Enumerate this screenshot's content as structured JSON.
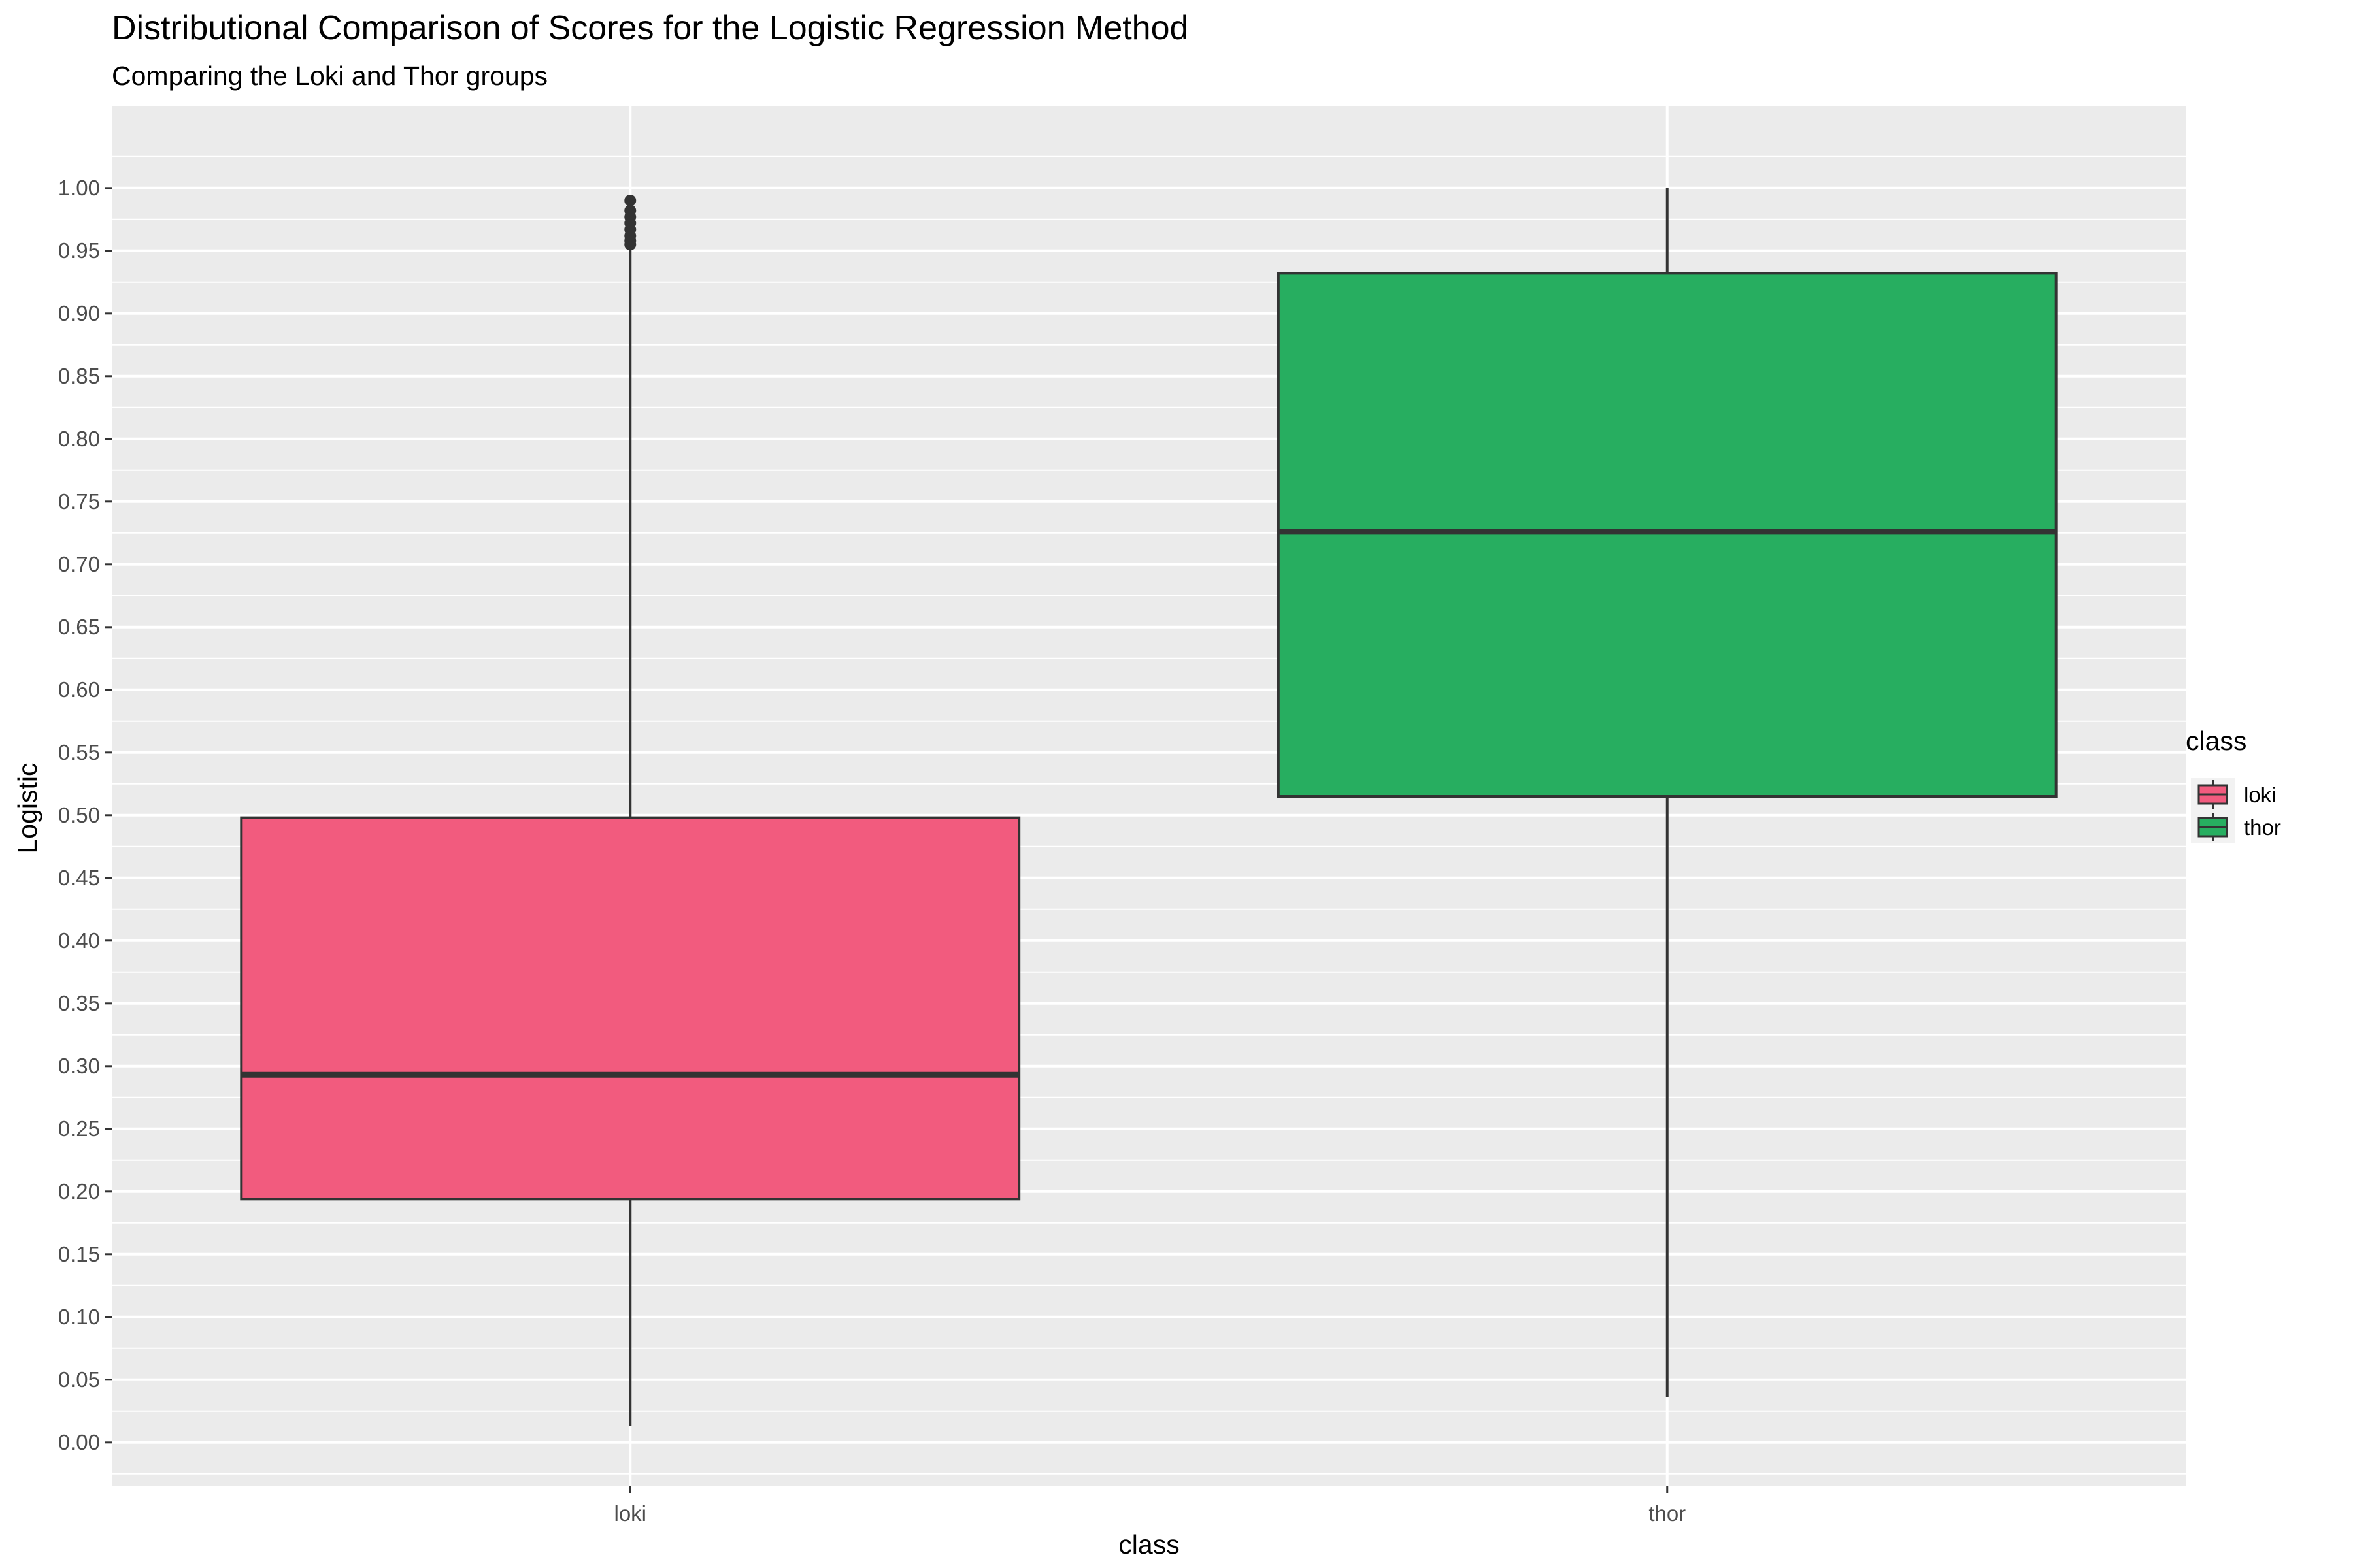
{
  "chart_data": {
    "type": "boxplot",
    "title": "Distributional Comparison of Scores for the Logistic Regression Method",
    "subtitle": "Comparing the Loki and Thor groups",
    "xlabel": "class",
    "ylabel": "Logistic",
    "ylim": [
      -0.035,
      1.065
    ],
    "y_ticks": [
      "0.00",
      "0.05",
      "0.10",
      "0.15",
      "0.20",
      "0.25",
      "0.30",
      "0.35",
      "0.40",
      "0.45",
      "0.50",
      "0.55",
      "0.60",
      "0.65",
      "0.70",
      "0.75",
      "0.80",
      "0.85",
      "0.90",
      "0.95",
      "1.00"
    ],
    "categories": [
      "loki",
      "thor"
    ],
    "grid": true,
    "legend": {
      "title": "class",
      "position": "right",
      "entries": [
        "loki",
        "thor"
      ]
    },
    "boxes": [
      {
        "category": "loki",
        "min": 0.013,
        "q1": 0.194,
        "median": 0.293,
        "q3": 0.498,
        "max": 0.953,
        "outliers": [
          0.955,
          0.958,
          0.962,
          0.967,
          0.972,
          0.977,
          0.982,
          0.99
        ]
      },
      {
        "category": "thor",
        "min": 0.036,
        "q1": 0.515,
        "median": 0.726,
        "q3": 0.932,
        "max": 1.0,
        "outliers": []
      }
    ],
    "colors": {
      "loki": "#f25b7e",
      "thor": "#27ae60",
      "panel": "#ebebeb",
      "grid": "#ffffff",
      "outline": "#333333"
    }
  }
}
